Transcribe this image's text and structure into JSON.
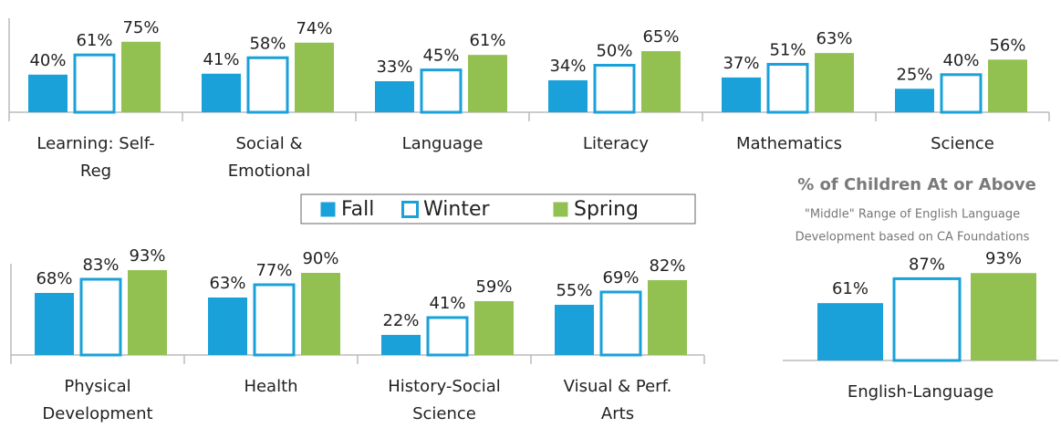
{
  "chart_data": [
    {
      "type": "bar",
      "categories": [
        [
          "Learning: Self-",
          "Reg"
        ],
        [
          "Social &",
          "Emotional"
        ],
        [
          "Language"
        ],
        [
          "Literacy"
        ],
        [
          "Mathematics"
        ],
        [
          "Science"
        ]
      ],
      "series": [
        {
          "name": "Fall",
          "color": "#1aa1d9",
          "values": [
            40,
            41,
            33,
            34,
            37,
            25
          ],
          "value_labels": [
            "40%",
            "41%",
            "33%",
            "34%",
            "37%",
            "25%"
          ]
        },
        {
          "name": "Winter",
          "color": "#1aa1d9",
          "values": [
            61,
            58,
            45,
            50,
            51,
            40
          ],
          "value_labels": [
            "61%",
            "58%",
            "45%",
            "50%",
            "51%",
            "40%"
          ]
        },
        {
          "name": "Spring",
          "color": "#93c151",
          "values": [
            75,
            74,
            61,
            65,
            63,
            56
          ],
          "value_labels": [
            "75%",
            "74%",
            "61%",
            "65%",
            "63%",
            "56%"
          ]
        }
      ],
      "ylim": [
        0,
        100
      ]
    },
    {
      "type": "bar",
      "categories": [
        [
          "Physical",
          "Development"
        ],
        [
          "Health"
        ],
        [
          "History-Social",
          "Science"
        ],
        [
          "Visual & Perf.",
          "Arts"
        ]
      ],
      "series": [
        {
          "values": [
            68,
            63,
            22,
            55
          ],
          "value_labels": [
            "68%",
            "63%",
            "22%",
            "55%"
          ]
        },
        {
          "values": [
            83,
            77,
            41,
            69
          ],
          "value_labels": [
            "83%",
            "77%",
            "41%",
            "69%"
          ]
        },
        {
          "values": [
            93,
            90,
            59,
            82
          ],
          "value_labels": [
            "93%",
            "90%",
            "59%",
            "82%"
          ]
        }
      ],
      "ylim": [
        0,
        100
      ]
    },
    {
      "type": "bar",
      "title": "% of Children At or Above",
      "subtitle": [
        "\"Middle\" Range of English Language",
        "Development based on CA Foundations"
      ],
      "categories": [
        [
          "English-Language"
        ]
      ],
      "series": [
        {
          "values": [
            61
          ],
          "value_labels": [
            "61%"
          ]
        },
        {
          "values": [
            87
          ],
          "value_labels": [
            "87%"
          ]
        },
        {
          "values": [
            93
          ],
          "value_labels": [
            "93%"
          ]
        }
      ],
      "ylim": [
        0,
        100
      ]
    }
  ]
}
